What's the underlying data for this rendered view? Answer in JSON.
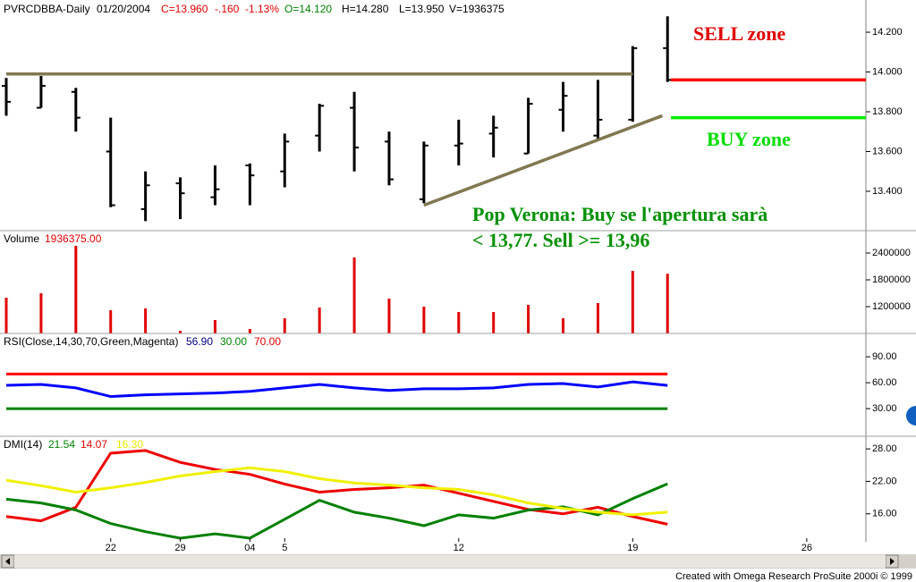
{
  "header": [
    {
      "text": "PVRCDBBA-Daily",
      "color": "#000000"
    },
    {
      "text": "01/20/2004",
      "color": "#000000"
    },
    {
      "text": "C=13.960",
      "color": "#e00000"
    },
    {
      "text": "-.160",
      "color": "#e00000"
    },
    {
      "text": "-1.13%",
      "color": "#e00000"
    },
    {
      "text": "O=14.120",
      "color": "#008000"
    },
    {
      "text": "H=14.280",
      "color": "#000000"
    },
    {
      "text": "L=13.950",
      "color": "#000000"
    },
    {
      "text": "V=1936375",
      "color": "#000000"
    }
  ],
  "footer": "Created with Omega Research ProSuite 2000i © 1999",
  "chart_data": [
    {
      "type": "ohlc",
      "color": "#000000",
      "x": [
        0,
        1,
        2,
        3,
        4,
        5,
        6,
        7,
        8,
        9,
        10,
        11,
        12,
        13,
        14,
        15,
        16,
        17,
        18,
        19
      ],
      "xlim": [
        -0.18,
        24.7
      ],
      "open": [
        13.93,
        13.82,
        13.9,
        13.6,
        13.31,
        13.44,
        13.37,
        13.53,
        13.5,
        13.68,
        13.82,
        13.65,
        13.36,
        13.63,
        13.69,
        13.59,
        13.81,
        13.68,
        13.76,
        14.12
      ],
      "high": [
        13.97,
        13.98,
        13.92,
        13.77,
        13.5,
        13.47,
        13.53,
        13.54,
        13.69,
        13.84,
        13.9,
        13.7,
        13.65,
        13.76,
        13.78,
        13.87,
        13.95,
        13.96,
        14.13,
        14.28
      ],
      "low": [
        13.78,
        13.82,
        13.7,
        13.32,
        13.25,
        13.26,
        13.33,
        13.33,
        13.42,
        13.6,
        13.5,
        13.43,
        13.34,
        13.53,
        13.57,
        13.59,
        13.7,
        13.66,
        13.75,
        13.95
      ],
      "close": [
        13.85,
        13.93,
        13.77,
        13.33,
        13.43,
        13.39,
        13.41,
        13.48,
        13.65,
        13.83,
        13.62,
        13.46,
        13.63,
        13.64,
        13.72,
        13.84,
        13.88,
        13.76,
        14.12,
        13.96
      ],
      "ylim": [
        13.202,
        14.362
      ],
      "yticks": [
        {
          "value": 13.4,
          "label": "13.400"
        },
        {
          "value": 13.6,
          "label": "13.600"
        },
        {
          "value": 13.8,
          "label": "13.800"
        },
        {
          "value": 14.0,
          "label": "14.000"
        },
        {
          "value": 14.2,
          "label": "14.200"
        }
      ],
      "lines": [
        {
          "color": "#807850",
          "x": [
            0,
            18
          ],
          "y": [
            13.99,
            13.99
          ]
        },
        {
          "color": "#807850",
          "x": [
            12,
            18.85
          ],
          "y": [
            13.33,
            13.78
          ]
        },
        {
          "color": "#ff0000",
          "x": [
            19.1,
            24.7
          ],
          "y": [
            13.96,
            13.96
          ]
        },
        {
          "color": "#00ee00",
          "x": [
            19.1,
            24.7
          ],
          "y": [
            13.77,
            13.77
          ]
        }
      ],
      "annotations": [
        {
          "text": "SELL zone",
          "color": "#e00000"
        },
        {
          "text": "BUY zone",
          "color": "#00dd00"
        },
        {
          "text": "Pop Verona: Buy se l'apertura sarà",
          "color": "#009000"
        },
        {
          "text": "< 13,77. Sell >= 13,96",
          "color": "#009000"
        }
      ]
    },
    {
      "type": "bar",
      "color": "#e00000",
      "legend": [
        {
          "text": "Volume",
          "color": "#000000"
        },
        {
          "text": "1936375.00",
          "color": "#e00000"
        }
      ],
      "x": [
        0,
        1,
        2,
        3,
        4,
        5,
        6,
        7,
        8,
        9,
        10,
        11,
        12,
        13,
        14,
        15,
        16,
        17,
        18,
        19
      ],
      "xlim": [
        -0.18,
        24.7
      ],
      "values": [
        1400000,
        1500000,
        2560000,
        1120000,
        1160000,
        660000,
        900000,
        700000,
        940000,
        1180000,
        2300000,
        1380000,
        1200000,
        1080000,
        1080000,
        1240000,
        940000,
        1280000,
        2000000,
        1936375
      ],
      "ylim": [
        600000,
        2900000
      ],
      "yticks": [
        1200000,
        1800000,
        2400000
      ]
    },
    {
      "type": "line",
      "legend": [
        {
          "text": "RSI(Close,14,30,70,Green,Magenta)",
          "color": "#000000"
        },
        {
          "text": "56.90",
          "color": "#000080"
        },
        {
          "text": "30.00",
          "color": "#008000"
        },
        {
          "text": "70.00",
          "color": "#e00000"
        }
      ],
      "x": [
        0,
        1,
        2,
        3,
        4,
        5,
        6,
        7,
        8,
        9,
        10,
        11,
        12,
        13,
        14,
        15,
        16,
        17,
        18,
        19
      ],
      "xlim": [
        -0.18,
        24.7
      ],
      "series": [
        {
          "color": "#0000ff",
          "values": [
            57,
            58,
            54,
            44,
            46,
            47,
            48,
            50,
            54,
            58,
            54,
            51,
            53,
            53,
            54,
            58,
            59,
            55,
            61,
            56.9
          ]
        }
      ],
      "hlines": [
        {
          "value": 70,
          "color": "#ff0000",
          "x": [
            0,
            19
          ]
        },
        {
          "value": 30,
          "color": "#008000",
          "x": [
            0,
            19
          ]
        }
      ],
      "ylim": [
        -2,
        117
      ],
      "yticks": [
        {
          "value": 30,
          "label": "30.00"
        },
        {
          "value": 60,
          "label": "60.00"
        },
        {
          "value": 90,
          "label": "90.00"
        }
      ]
    },
    {
      "type": "line",
      "legend": [
        {
          "text": "DMI(14)",
          "color": "#000000"
        },
        {
          "text": "21.54",
          "color": "#008000"
        },
        {
          "text": "14.07",
          "color": "#e00000"
        },
        {
          "text": "16.30",
          "color": "#e8e800"
        }
      ],
      "x": [
        0,
        1,
        2,
        3,
        4,
        5,
        6,
        7,
        8,
        9,
        10,
        11,
        12,
        13,
        14,
        15,
        16,
        17,
        18,
        19
      ],
      "xlim": [
        -0.18,
        24.7
      ],
      "series": [
        {
          "color": "#ee0000",
          "values": [
            15.5,
            14.7,
            17.2,
            27.2,
            27.7,
            25.5,
            24.2,
            23.3,
            21.5,
            20,
            20.5,
            20.8,
            21.3,
            19.8,
            18.3,
            16.8,
            16,
            17.2,
            15.5,
            14.07
          ]
        },
        {
          "color": "#008000",
          "values": [
            18.7,
            18,
            16.7,
            14.2,
            12.7,
            11.5,
            12.3,
            11.5,
            15,
            18.5,
            16.3,
            15.2,
            13.8,
            15.8,
            15.2,
            16.7,
            17.3,
            15.8,
            18.8,
            21.54
          ]
        },
        {
          "color": "#f0f000",
          "values": [
            22.2,
            21.2,
            20,
            20.8,
            21.8,
            23,
            23.8,
            24.5,
            23.8,
            22.5,
            21.7,
            21.3,
            20.8,
            20.5,
            19.5,
            18,
            17,
            16.3,
            15.8,
            16.3
          ]
        }
      ],
      "ylim": [
        10.83,
        30.33
      ],
      "yticks": [
        {
          "value": 16,
          "label": "16.00"
        },
        {
          "value": 22,
          "label": "22.00"
        },
        {
          "value": 28,
          "label": "28.00"
        }
      ],
      "xticks": [
        {
          "value": 3,
          "label": "22"
        },
        {
          "value": 5,
          "label": "29"
        },
        {
          "value": 7,
          "label": "04"
        },
        {
          "value": 8,
          "label": "5"
        },
        {
          "value": 13,
          "label": "12"
        },
        {
          "value": 18,
          "label": "19"
        },
        {
          "value": 23,
          "label": "26"
        }
      ]
    }
  ]
}
